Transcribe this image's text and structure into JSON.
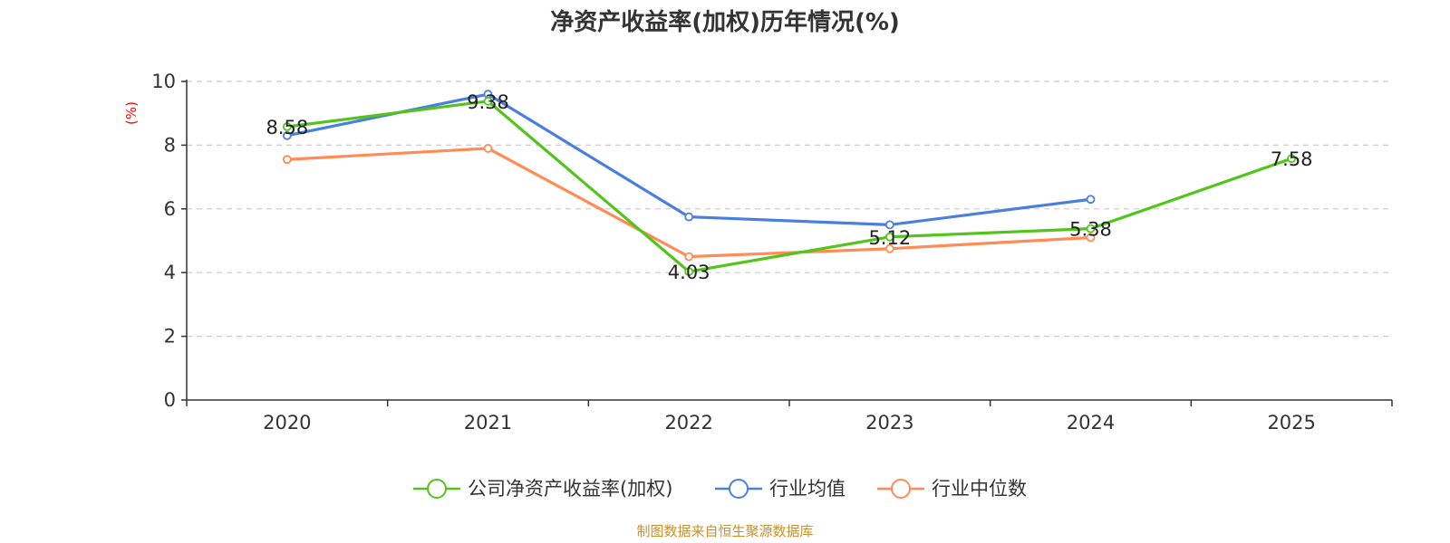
{
  "chart_data": {
    "type": "line",
    "title": "净资产收益率(加权)历年情况(%)",
    "ylabel": "(%)",
    "xlabel": "",
    "categories": [
      "2020",
      "2021",
      "2022",
      "2023",
      "2024",
      "2025"
    ],
    "ylim": [
      0,
      10
    ],
    "yticks": [
      0,
      2,
      4,
      6,
      8,
      10
    ],
    "grid": true,
    "legend_position": "bottom",
    "series": [
      {
        "name": "公司净资产收益率(加权)",
        "color": "#52c41a",
        "values": [
          8.58,
          9.38,
          4.03,
          5.12,
          5.38,
          7.58
        ],
        "data_labels": [
          "8.58",
          "9.38",
          "4.03",
          "5.12",
          "5.38",
          "7.58"
        ]
      },
      {
        "name": "行业均值",
        "color": "#4a7fe0",
        "values": [
          8.3,
          9.6,
          5.75,
          5.5,
          6.3,
          null
        ]
      },
      {
        "name": "行业中位数",
        "color": "#ff8c55",
        "values": [
          7.55,
          7.9,
          4.5,
          4.75,
          5.1,
          null
        ]
      }
    ]
  },
  "footer": {
    "source": "制图数据来自恒生聚源数据库"
  }
}
